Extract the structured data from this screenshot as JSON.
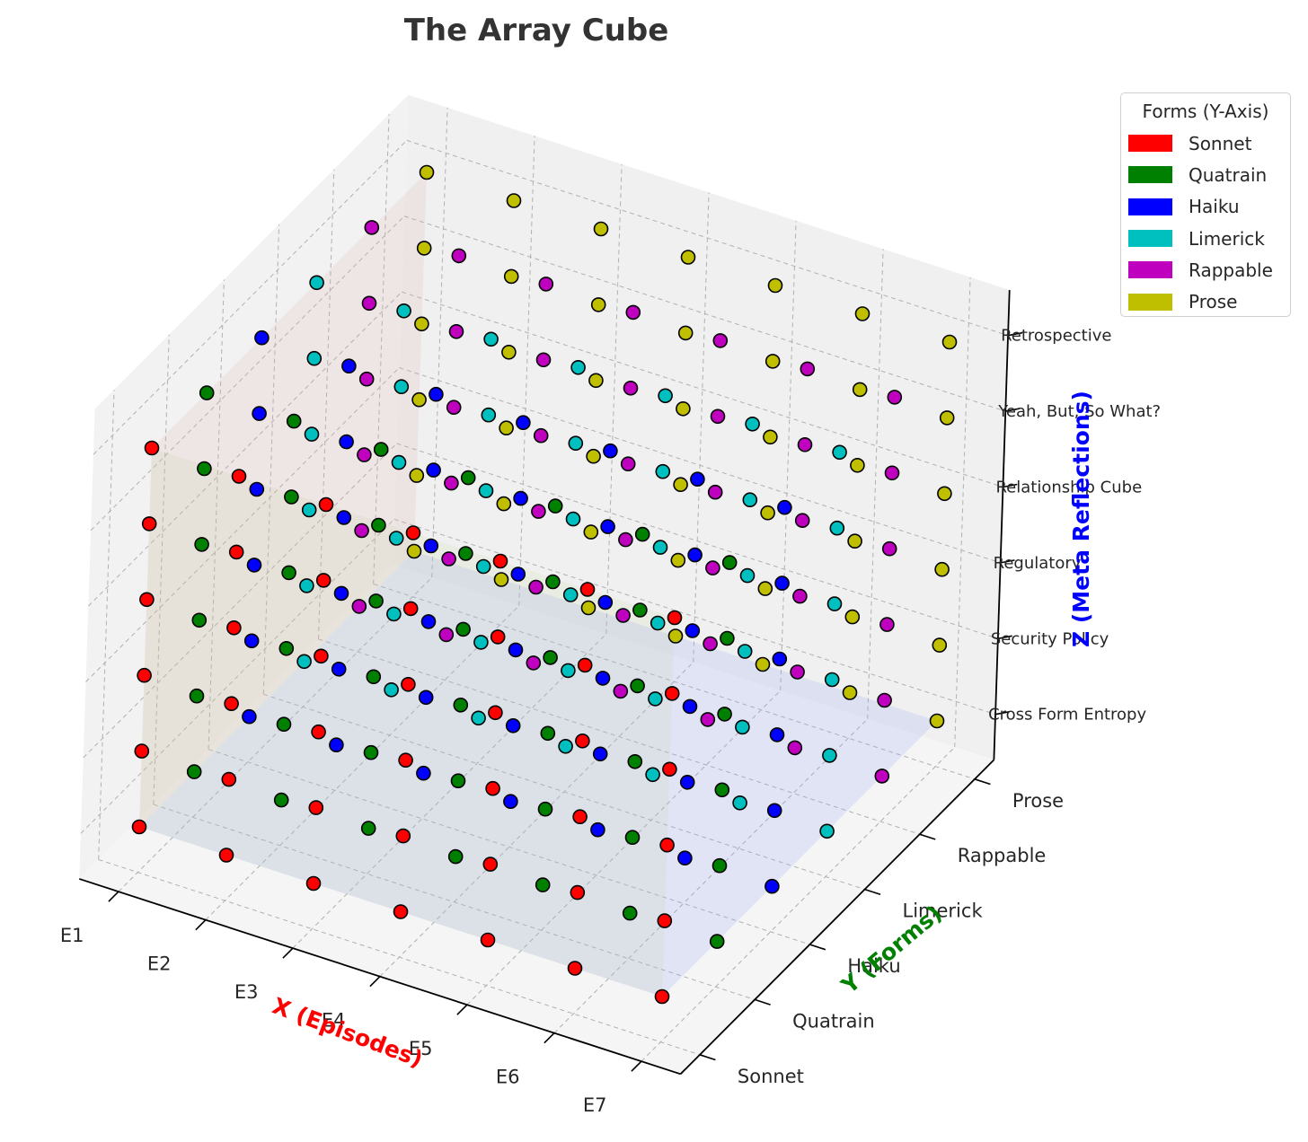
{
  "chart_data": {
    "type": "scatter3d",
    "title": "The Array Cube",
    "xlabel": "X (Episodes)",
    "ylabel": "Y (Forms)",
    "zlabel": "Z (Meta Reflections)",
    "x_categories": [
      "E1",
      "E2",
      "E3",
      "E4",
      "E5",
      "E6",
      "E7"
    ],
    "y_categories": [
      "Sonnet",
      "Quatrain",
      "Haiku",
      "Limerick",
      "Rappable",
      "Prose"
    ],
    "z_categories": [
      "Cross Form Entropy",
      "Security Policy",
      "Regulatory",
      "Relationship Cube",
      "Yeah, But, So What?",
      "Retrospective"
    ],
    "grid": true,
    "legend": {
      "title": "Forms (Y-Axis)",
      "position": "top-right",
      "items": [
        "Sonnet",
        "Quatrain",
        "Haiku",
        "Limerick",
        "Rappable",
        "Prose"
      ]
    },
    "series": [
      {
        "name": "Sonnet",
        "color": "#ff0000"
      },
      {
        "name": "Quatrain",
        "color": "#008000"
      },
      {
        "name": "Haiku",
        "color": "#0000ff"
      },
      {
        "name": "Limerick",
        "color": "#00bfbf"
      },
      {
        "name": "Rappable",
        "color": "#bf00bf"
      },
      {
        "name": "Prose",
        "color": "#bfbf00"
      }
    ],
    "points": "full grid: every combination of x_categories × y_categories × z_categories, colored by y category",
    "colors": {
      "xlabel": "#ff0000",
      "ylabel": "#008000",
      "zlabel": "#0000ff",
      "title": "#333333"
    }
  }
}
